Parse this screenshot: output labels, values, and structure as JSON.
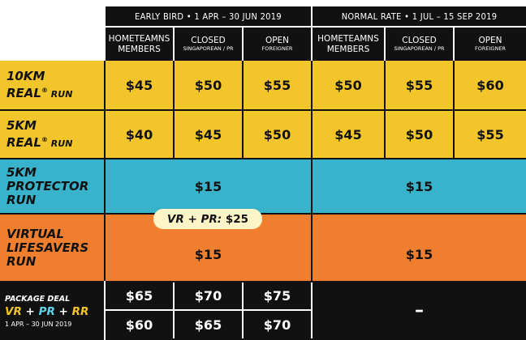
{
  "periods": [
    {
      "title": "EARLY BIRD  •  1 APR – 30 JUN 2019"
    },
    {
      "title": "NORMAL RATE  •  1 JUL – 15 SEP 2019"
    }
  ],
  "columns": [
    {
      "main": "HOMETEAMNS\nMEMBERS",
      "sub": ""
    },
    {
      "main": "CLOSED",
      "sub": "SINGAPOREAN / PR"
    },
    {
      "main": "OPEN",
      "sub": "FOREIGNER"
    },
    {
      "main": "HOMETEAMNS\nMEMBERS",
      "sub": ""
    },
    {
      "main": "CLOSED",
      "sub": "SINGAPOREAN / PR"
    },
    {
      "main": "OPEN",
      "sub": "FOREIGNER"
    }
  ],
  "rows": [
    {
      "line1": "10KM",
      "line2": "REAL",
      "sup": "®",
      "line3": " RUN",
      "prices": [
        "$45",
        "$50",
        "$55",
        "$50",
        "$55",
        "$60"
      ]
    },
    {
      "line1": "5KM",
      "line2": "REAL",
      "sup": "®",
      "line3": " RUN",
      "prices": [
        "$40",
        "$45",
        "$50",
        "$45",
        "$50",
        "$55"
      ]
    }
  ],
  "protector": {
    "lines": [
      "5KM",
      "PROTECTOR",
      "RUN"
    ],
    "early": "$15",
    "normal": "$15"
  },
  "lifesavers": {
    "lines": [
      "VIRTUAL",
      "LIFESAVERS",
      "RUN"
    ],
    "early": "$15",
    "normal": "$15"
  },
  "bundle": {
    "prefix": "VR + PR:",
    "price": "$25"
  },
  "package": {
    "title": "PACKAGE DEAL",
    "vr": "VR",
    "plus1": " + ",
    "pr": "PR",
    "plus2": " + ",
    "rr": "RR",
    "date": "1 APR – 30 JUN 2019",
    "row1": [
      "$65",
      "$70",
      "$75"
    ],
    "row2": [
      "$60",
      "$65",
      "$70"
    ],
    "normal": "–"
  },
  "colors": {
    "yellow": "#f2c52a",
    "blue": "#39b2cc",
    "orange": "#ef7f2f",
    "black": "#111111"
  }
}
